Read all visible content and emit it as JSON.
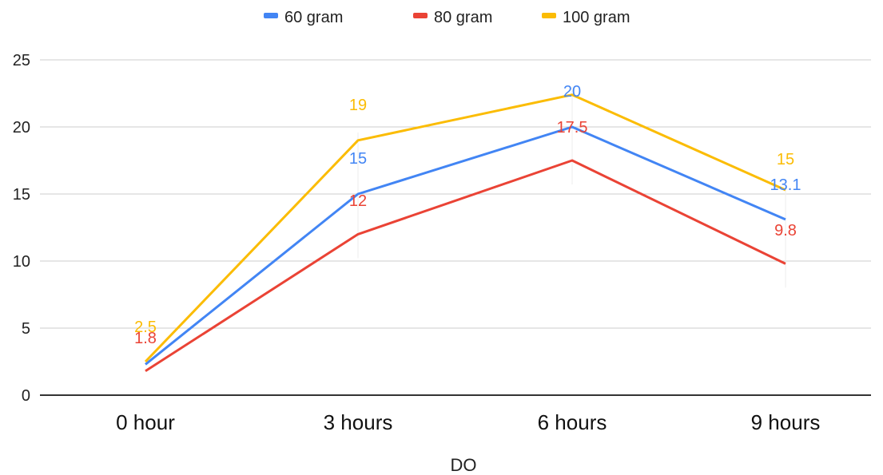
{
  "chart_data": {
    "type": "line",
    "categories": [
      "0 hour",
      "3 hours",
      "6 hours",
      "9 hours"
    ],
    "series": [
      {
        "name": "60 gram",
        "color": "#4285f4",
        "values": [
          2.3,
          15,
          20,
          13.1
        ],
        "labels": [
          "",
          "15",
          "20",
          "13.1"
        ]
      },
      {
        "name": "80 gram",
        "color": "#ea4335",
        "values": [
          1.8,
          12,
          17.5,
          9.8
        ],
        "labels": [
          "1.8",
          "12",
          "17.5",
          "9.8"
        ]
      },
      {
        "name": "100 gram",
        "color": "#fbbc04",
        "values": [
          2.5,
          19,
          22.4,
          15.3
        ],
        "labels": [
          "2.5",
          "19",
          "",
          "15"
        ]
      }
    ],
    "xlabel": "DO",
    "ylabel": "",
    "ylim": [
      0,
      25
    ],
    "yticks": [
      0,
      5,
      10,
      15,
      20,
      25
    ],
    "grid": true,
    "legend_position": "top-center"
  }
}
